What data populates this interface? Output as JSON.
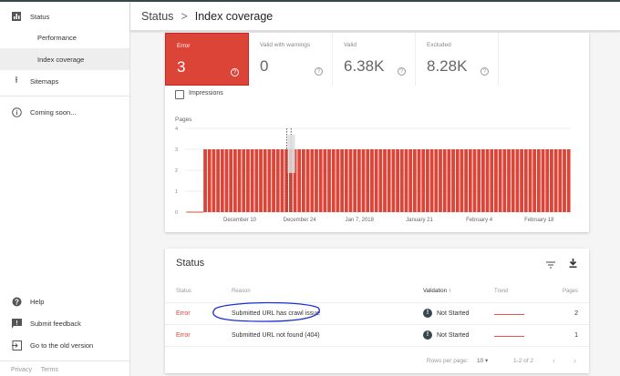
{
  "header": {
    "section": "Status",
    "separator": ">",
    "page": "Index coverage"
  },
  "sidebar": {
    "items": [
      {
        "label": "Status",
        "icon": "bar-chart-icon"
      },
      {
        "label": "Performance"
      },
      {
        "label": "Index coverage",
        "active": true
      },
      {
        "label": "Sitemaps",
        "icon": "upload-icon"
      },
      {
        "label": "Coming soon...",
        "icon": "info-icon"
      }
    ],
    "bottom": [
      {
        "label": "Help",
        "icon": "help-icon"
      },
      {
        "label": "Submit feedback",
        "icon": "feedback-icon"
      },
      {
        "label": "Go to the old version",
        "icon": "exit-icon"
      }
    ],
    "footer": {
      "privacy": "Privacy",
      "terms": "Terms"
    }
  },
  "tiles": [
    {
      "label": "Error",
      "value": "3",
      "selected": true
    },
    {
      "label": "Valid with warnings",
      "value": "0"
    },
    {
      "label": "Valid",
      "value": "6.38K"
    },
    {
      "label": "Excluded",
      "value": "8.28K"
    }
  ],
  "impressions_label": "Impressions",
  "colors": {
    "error": "#db4437",
    "accent_dark": "#37474f"
  },
  "chart_data": {
    "type": "bar",
    "ylabel": "Pages",
    "ylim": [
      0,
      4
    ],
    "yticks": [
      "0",
      "1",
      "2",
      "3",
      "4"
    ],
    "xtick_labels": [
      "December 10",
      "December 24",
      "Jan 7, 2018",
      "January 21",
      "February 4",
      "February 18"
    ],
    "xtick_dates": [
      "2017-12-10",
      "2017-12-24",
      "2018-01-07",
      "2018-01-21",
      "2018-02-04",
      "2018-02-18"
    ],
    "grid": true,
    "color": "#db4437",
    "x": [
      "2017-11-28",
      "2017-11-29",
      "2017-11-30",
      "2017-12-01",
      "2017-12-02",
      "2017-12-03",
      "2017-12-04",
      "2017-12-05",
      "2017-12-06",
      "2017-12-07",
      "2017-12-08",
      "2017-12-09",
      "2017-12-10",
      "2017-12-11",
      "2017-12-12",
      "2017-12-13",
      "2017-12-14",
      "2017-12-15",
      "2017-12-16",
      "2017-12-17",
      "2017-12-18",
      "2017-12-19",
      "2017-12-20",
      "2017-12-21",
      "2017-12-22",
      "2017-12-23",
      "2017-12-24",
      "2017-12-25",
      "2017-12-26",
      "2017-12-27",
      "2017-12-28",
      "2017-12-29",
      "2017-12-30",
      "2017-12-31",
      "2018-01-01",
      "2018-01-02",
      "2018-01-03",
      "2018-01-04",
      "2018-01-05",
      "2018-01-06",
      "2018-01-07",
      "2018-01-08",
      "2018-01-09",
      "2018-01-10",
      "2018-01-11",
      "2018-01-12",
      "2018-01-13",
      "2018-01-14",
      "2018-01-15",
      "2018-01-16",
      "2018-01-17",
      "2018-01-18",
      "2018-01-19",
      "2018-01-20",
      "2018-01-21",
      "2018-01-22",
      "2018-01-23",
      "2018-01-24",
      "2018-01-25",
      "2018-01-26",
      "2018-01-27",
      "2018-01-28",
      "2018-01-29",
      "2018-01-30",
      "2018-01-31",
      "2018-02-01",
      "2018-02-02",
      "2018-02-03",
      "2018-02-04",
      "2018-02-05",
      "2018-02-06",
      "2018-02-07",
      "2018-02-08",
      "2018-02-09",
      "2018-02-10",
      "2018-02-11",
      "2018-02-12",
      "2018-02-13",
      "2018-02-14",
      "2018-02-15",
      "2018-02-16",
      "2018-02-17",
      "2018-02-18",
      "2018-02-19",
      "2018-02-20",
      "2018-02-21",
      "2018-02-22",
      "2018-02-23",
      "2018-02-24",
      "2018-02-25"
    ],
    "values": [
      0,
      0,
      0,
      0,
      3,
      3,
      3,
      3,
      3,
      3,
      3,
      3,
      3,
      3,
      3,
      3,
      3,
      3,
      3,
      3,
      3,
      3,
      3,
      3,
      3,
      3,
      3,
      3,
      3,
      3,
      3,
      3,
      3,
      3,
      3,
      3,
      3,
      3,
      3,
      3,
      3,
      3,
      3,
      3,
      3,
      3,
      3,
      3,
      3,
      3,
      3,
      3,
      3,
      3,
      3,
      3,
      3,
      3,
      3,
      3,
      3,
      3,
      3,
      3,
      3,
      3,
      3,
      3,
      3,
      3,
      3,
      3,
      3,
      3,
      3,
      3,
      3,
      3,
      3,
      3,
      3,
      3,
      3,
      3,
      3,
      3,
      3,
      3,
      3,
      3
    ],
    "annotation_dates": [
      "2017-12-21",
      "2017-12-22"
    ]
  },
  "table": {
    "title": "Status",
    "columns": {
      "status": "Status",
      "reason": "Reason",
      "validation": "Validation",
      "sort_arrow": "↑",
      "trend": "Trend",
      "pages": "Pages"
    },
    "rows": [
      {
        "status": "Error",
        "reason": "Submitted URL has crawl issue",
        "validation": "Not Started",
        "pages": "2",
        "circled": true
      },
      {
        "status": "Error",
        "reason": "Submitted URL not found (404)",
        "validation": "Not Started",
        "pages": "1"
      }
    ],
    "footer": {
      "rows_per_page_label": "Rows per page:",
      "rows_per_page": "10",
      "range": "1-2 of 2"
    }
  }
}
